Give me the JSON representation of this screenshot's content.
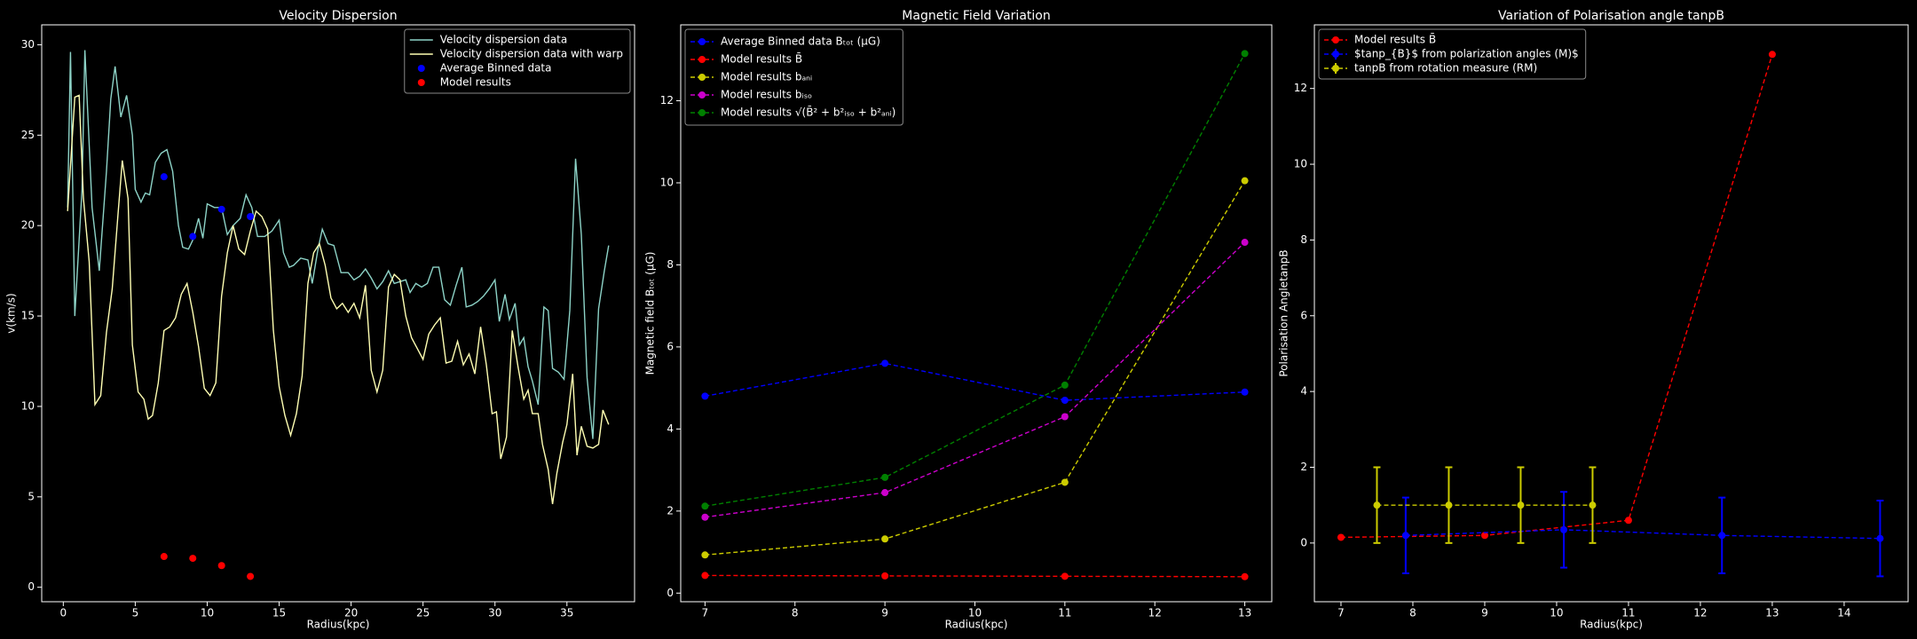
{
  "chart_data": [
    {
      "type": "line",
      "title": "Velocity Dispersion",
      "xlabel": "Radius(kpc)",
      "ylabel": "v(km/s)",
      "xlim": [
        -1.5,
        39.7
      ],
      "ylim": [
        -0.8,
        31.1
      ],
      "xticks": [
        0,
        5,
        10,
        15,
        20,
        25,
        30,
        35
      ],
      "yticks": [
        0,
        5,
        10,
        15,
        20,
        25,
        30
      ],
      "legend": "upper right",
      "series": [
        {
          "name": "Velocity dispersion data",
          "color": "#8dd3c7",
          "linestyle": "solid",
          "marker": false,
          "x": [
            0.3,
            0.5,
            0.8,
            1.3,
            1.5,
            2,
            2.5,
            3,
            3.3,
            3.6,
            4,
            4.4,
            4.8,
            5,
            5.4,
            5.7,
            6,
            6.4,
            6.8,
            7.2,
            7.6,
            8,
            8.3,
            8.7,
            9,
            9.4,
            9.7,
            10,
            10.5,
            11,
            11.4,
            11.8,
            12.3,
            12.7,
            13.1,
            13.5,
            14,
            14.5,
            15,
            15.3,
            15.7,
            16,
            16.5,
            17,
            17.3,
            17.7,
            18,
            18.4,
            18.8,
            19.3,
            19.8,
            20.2,
            20.6,
            21,
            21.4,
            21.8,
            22.2,
            22.6,
            23,
            23.4,
            23.8,
            24.1,
            24.5,
            24.9,
            25.3,
            25.7,
            26.1,
            26.5,
            26.9,
            27.3,
            27.7,
            28,
            28.4,
            28.8,
            29.2,
            29.6,
            30,
            30.3,
            30.7,
            31,
            31.4,
            31.7,
            32,
            32.3,
            32.6,
            33,
            33.4,
            33.7,
            34,
            34.4,
            34.8,
            35.2,
            35.6,
            36,
            36.4,
            36.8,
            37.2,
            37.6,
            37.9
          ],
          "values": [
            21,
            29.6,
            15,
            22,
            29.7,
            21,
            17.5,
            23,
            27,
            28.8,
            26,
            27.2,
            25,
            22,
            21.3,
            21.8,
            21.7,
            23.5,
            24,
            24.2,
            23,
            20,
            18.8,
            18.7,
            19.2,
            20.4,
            19.3,
            21.2,
            21,
            21,
            19.5,
            20,
            20.4,
            21.7,
            21,
            19.4,
            19.4,
            19.7,
            20.3,
            18.5,
            17.7,
            17.8,
            18.2,
            18.1,
            16.8,
            18.7,
            19.8,
            19,
            18.9,
            17.4,
            17.4,
            17,
            17.2,
            17.6,
            17.1,
            16.5,
            16.9,
            17.5,
            16.8,
            16.9,
            17,
            16.3,
            16.8,
            16.6,
            16.8,
            17.7,
            17.7,
            15.9,
            15.6,
            16.7,
            17.7,
            15.5,
            15.6,
            15.8,
            16.1,
            16.5,
            17,
            14.7,
            16.2,
            14.8,
            15.7,
            13.4,
            13.8,
            12.2,
            11.4,
            10.1,
            15.5,
            15.3,
            12.1,
            11.9,
            11.5,
            15.3,
            23.7,
            19.5,
            11.6,
            8.2,
            15.4,
            17.5,
            18.9
          ]
        },
        {
          "name": "Velocity dispersion data with warp",
          "color": "#ffffb3",
          "linestyle": "solid",
          "marker": false,
          "x": [
            0.3,
            0.8,
            1.1,
            1.4,
            1.8,
            2.2,
            2.6,
            3,
            3.4,
            3.8,
            4.1,
            4.5,
            4.8,
            5.2,
            5.6,
            5.9,
            6.2,
            6.6,
            7,
            7.4,
            7.8,
            8.2,
            8.6,
            9,
            9.4,
            9.8,
            10.2,
            10.6,
            11,
            11.4,
            11.8,
            12.2,
            12.6,
            13,
            13.4,
            13.8,
            14.2,
            14.6,
            15,
            15.4,
            15.8,
            16.2,
            16.6,
            17,
            17.4,
            17.8,
            18.2,
            18.6,
            19,
            19.4,
            19.8,
            20.2,
            20.6,
            21,
            21.4,
            21.8,
            22.2,
            22.6,
            23,
            23.4,
            23.8,
            24.2,
            24.6,
            25,
            25.4,
            25.8,
            26.2,
            26.6,
            27,
            27.4,
            27.8,
            28.2,
            28.6,
            29,
            29.4,
            29.8,
            30.1,
            30.4,
            30.8,
            31.2,
            31.6,
            32,
            32.3,
            32.6,
            33,
            33.3,
            33.7,
            34,
            34.3,
            34.7,
            35,
            35.4,
            35.7,
            36,
            36.4,
            36.8,
            37.2,
            37.5,
            37.9
          ],
          "values": [
            20.8,
            27.1,
            27.2,
            21.5,
            18,
            10.1,
            10.6,
            14.1,
            16.5,
            20.6,
            23.6,
            21.5,
            13.4,
            10.8,
            10.4,
            9.3,
            9.5,
            11.3,
            14.2,
            14.4,
            14.9,
            16.2,
            16.8,
            15.2,
            13.3,
            11,
            10.6,
            11.3,
            16.1,
            18.5,
            20,
            18.7,
            18.4,
            19.7,
            20.8,
            20.5,
            19.8,
            14.2,
            11.1,
            9.5,
            8.4,
            9.6,
            11.7,
            16.8,
            18.5,
            19,
            17.8,
            16,
            15.4,
            15.7,
            15.2,
            15.7,
            14.9,
            16.7,
            12,
            10.8,
            12,
            16.6,
            17.3,
            17,
            15,
            13.8,
            13.2,
            12.6,
            14,
            14.5,
            14.9,
            12.4,
            12.5,
            13.6,
            12.3,
            12.9,
            11.8,
            14.4,
            12.3,
            9.6,
            9.7,
            7.1,
            8.3,
            14.2,
            12.2,
            10.4,
            10.9,
            9.6,
            9.6,
            7.9,
            6.5,
            4.6,
            6.3,
            8,
            9,
            11.8,
            7.3,
            8.9,
            7.8,
            7.7,
            7.9,
            9.8,
            9
          ]
        },
        {
          "name": "Average Binned data",
          "color": "#0000ff",
          "linestyle": "none",
          "marker": true,
          "x": [
            7,
            9,
            11,
            13
          ],
          "values": [
            22.7,
            19.4,
            20.9,
            20.5
          ]
        },
        {
          "name": "Model results",
          "color": "#ff0000",
          "linestyle": "none",
          "marker": true,
          "x": [
            7,
            9,
            11,
            13
          ],
          "values": [
            1.7,
            1.6,
            1.2,
            0.6
          ]
        }
      ]
    },
    {
      "type": "line",
      "title": "Magnetic Field Variation",
      "xlabel": "Radius(kpc)",
      "ylabel": "Magnetic field Bₜₒₜ (μG)",
      "xlim": [
        6.73,
        13.3
      ],
      "ylim": [
        -0.21,
        13.85
      ],
      "xticks": [
        7,
        8,
        9,
        10,
        11,
        12,
        13
      ],
      "yticks": [
        0,
        2,
        4,
        6,
        8,
        10,
        12
      ],
      "legend": "upper left",
      "series": [
        {
          "name": "Average Binned data Bₜₒₜ (μG)",
          "color": "#0000ff",
          "linestyle": "dashed",
          "marker": true,
          "x": [
            7,
            9,
            11,
            13
          ],
          "values": [
            4.8,
            5.6,
            4.7,
            4.9
          ]
        },
        {
          "name": "Model results B̄",
          "color": "#ff0000",
          "linestyle": "dashed",
          "marker": true,
          "x": [
            7,
            9,
            11,
            13
          ],
          "values": [
            0.43,
            0.42,
            0.41,
            0.4
          ]
        },
        {
          "name": "Model results bₐₙᵢ",
          "color": "#cccc00",
          "linestyle": "dashed",
          "marker": true,
          "x": [
            7,
            9,
            11,
            13
          ],
          "values": [
            0.93,
            1.32,
            2.7,
            10.05
          ]
        },
        {
          "name": "Model results bᵢₛₒ",
          "color": "#cc00cc",
          "linestyle": "dashed",
          "marker": true,
          "x": [
            7,
            9,
            11,
            13
          ],
          "values": [
            1.85,
            2.45,
            4.3,
            8.55
          ]
        },
        {
          "name": "Model results √(B̄² + b²ᵢₛₒ + b²ₐₙᵢ)",
          "color": "#008000",
          "linestyle": "dashed",
          "marker": true,
          "x": [
            7,
            9,
            11,
            13
          ],
          "values": [
            2.12,
            2.82,
            5.07,
            13.15
          ]
        }
      ]
    },
    {
      "type": "line",
      "title": "Variation of Polarisation angle tanpB",
      "xlabel": "Radius(kpc)",
      "ylabel": "Polarisation AngletanpB",
      "xlim": [
        6.63,
        14.89
      ],
      "ylim": [
        -1.55,
        13.68
      ],
      "xticks": [
        7,
        8,
        9,
        10,
        11,
        12,
        13,
        14
      ],
      "yticks": [
        0,
        2,
        4,
        6,
        8,
        10,
        12
      ],
      "legend": "upper left",
      "series": [
        {
          "name": "Model results B̄",
          "color": "#ff0000",
          "linestyle": "dashed",
          "marker": true,
          "x": [
            7,
            9,
            11,
            13
          ],
          "values": [
            0.15,
            0.2,
            0.6,
            12.9
          ]
        },
        {
          "name": "$tanp_{B}$ from polarization angles (M)$",
          "color": "#0000ff",
          "linestyle": "dashed",
          "marker": true,
          "x": [
            7.9,
            10.1,
            12.3,
            14.5
          ],
          "values": [
            0.2,
            0.35,
            0.2,
            0.12
          ],
          "errors": [
            1.0,
            1.0,
            1.0,
            1.0
          ]
        },
        {
          "name": "tanpB from rotation measure (RM)",
          "color": "#cccc00",
          "linestyle": "dashed",
          "marker": true,
          "x": [
            7.5,
            8.5,
            9.5,
            10.5
          ],
          "values": [
            1.0,
            1.0,
            1.0,
            1.0
          ],
          "errors": [
            1.0,
            1.0,
            1.0,
            1.0
          ]
        }
      ]
    }
  ]
}
